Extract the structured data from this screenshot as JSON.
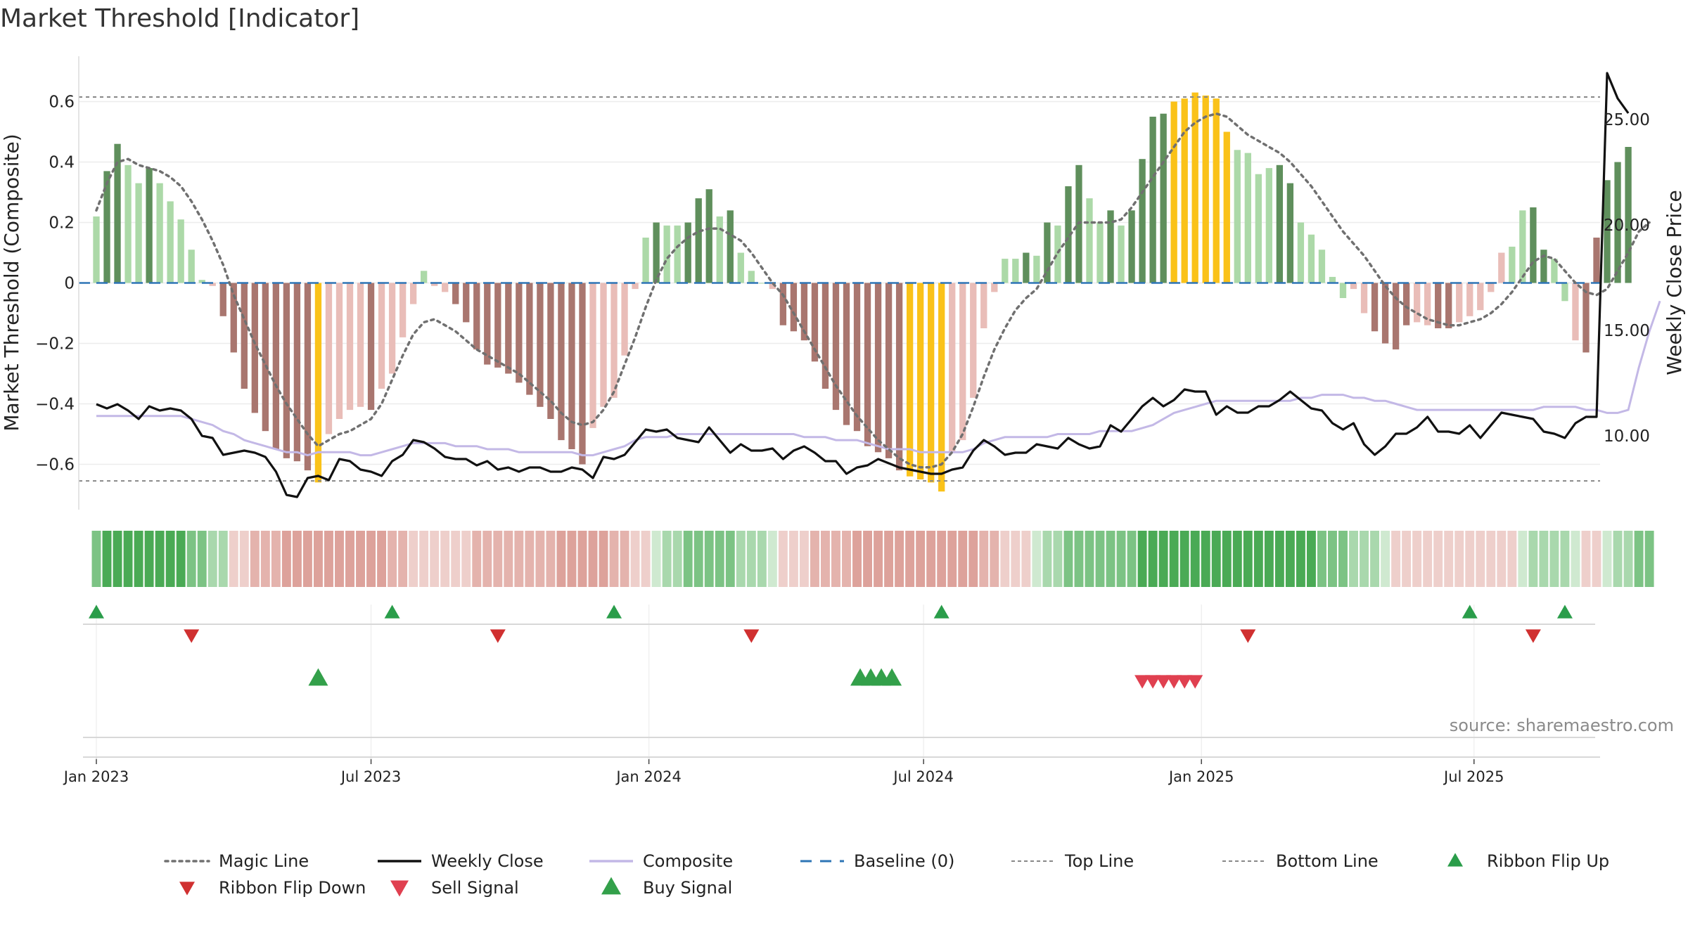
{
  "title": "Market Threshold [Indicator]",
  "source": "source: sharemaestro.com",
  "colors": {
    "bar_pos_strong": "#5f8f5c",
    "bar_pos_weak": "#acd9a8",
    "bar_neg_strong": "#a9766f",
    "bar_neg_weak": "#e9bdb8",
    "bar_extreme": "#fac219",
    "magic_line": "#707070",
    "weekly_close": "#111111",
    "composite": "#c3b8e6",
    "baseline": "#2e75b6",
    "threshold_lines": "#888888",
    "ribbon_flip_up": "#2a9d4a",
    "ribbon_flip_down": "#d03030",
    "sell_signal": "#e04050",
    "buy_signal": "#33a04a"
  },
  "chart_data": {
    "type": "bar",
    "title": "Market Threshold [Indicator]",
    "ylabel_left": "Market Threshold (Composite)",
    "ylabel_right": "Weekly Close Price",
    "ylim_left": [
      -0.75,
      0.75
    ],
    "ylim_right": [
      6.5,
      28.0
    ],
    "left_ticks": [
      0.6,
      0.4,
      0.2,
      0,
      -0.2,
      -0.4,
      -0.6
    ],
    "left_tick_labels": [
      "0.6",
      "0.4",
      "0.2",
      "0",
      "−0.2",
      "−0.4",
      "−0.6"
    ],
    "right_ticks": [
      25,
      20,
      15,
      10
    ],
    "right_tick_labels": [
      "25.00",
      "20.00",
      "15.00",
      "10.00"
    ],
    "top_line": 0.615,
    "bottom_line": -0.655,
    "x_start_week": -1,
    "x_end_week": 143,
    "date_ticks": [
      {
        "week": 0,
        "label": "Jan 2023"
      },
      {
        "week": 26,
        "label": "Jul 2023"
      },
      {
        "week": 52.3,
        "label": "Jan 2024"
      },
      {
        "week": 78.3,
        "label": "Jul 2024"
      },
      {
        "week": 104.6,
        "label": "Jan 2025"
      },
      {
        "week": 130.4,
        "label": "Jul 2025"
      }
    ],
    "bars": [
      0.22,
      0.37,
      0.46,
      0.39,
      0.33,
      0.38,
      0.33,
      0.27,
      0.21,
      0.11,
      0.01,
      -0.01,
      -0.11,
      -0.23,
      -0.35,
      -0.43,
      -0.49,
      -0.55,
      -0.58,
      -0.59,
      -0.62,
      -0.66,
      -0.5,
      -0.45,
      -0.42,
      -0.41,
      -0.42,
      -0.35,
      -0.3,
      -0.18,
      -0.07,
      0.04,
      -0.01,
      -0.03,
      -0.07,
      -0.13,
      -0.22,
      -0.27,
      -0.28,
      -0.3,
      -0.33,
      -0.37,
      -0.41,
      -0.45,
      -0.52,
      -0.55,
      -0.6,
      -0.48,
      -0.41,
      -0.38,
      -0.24,
      -0.02,
      0.15,
      0.2,
      0.19,
      0.19,
      0.2,
      0.28,
      0.31,
      0.22,
      0.24,
      0.1,
      0.04,
      0.0,
      -0.02,
      -0.14,
      -0.16,
      -0.19,
      -0.26,
      -0.35,
      -0.42,
      -0.47,
      -0.49,
      -0.54,
      -0.56,
      -0.58,
      -0.62,
      -0.64,
      -0.65,
      -0.66,
      -0.69,
      -0.56,
      -0.52,
      -0.38,
      -0.15,
      -0.03,
      0.08,
      0.08,
      0.1,
      0.09,
      0.2,
      0.19,
      0.32,
      0.39,
      0.28,
      0.2,
      0.24,
      0.19,
      0.24,
      0.41,
      0.55,
      0.56,
      0.6,
      0.61,
      0.63,
      0.62,
      0.61,
      0.5,
      0.44,
      0.43,
      0.36,
      0.38,
      0.39,
      0.33,
      0.2,
      0.16,
      0.11,
      0.02,
      -0.05,
      -0.02,
      -0.1,
      -0.16,
      -0.2,
      -0.22,
      -0.14,
      -0.13,
      -0.14,
      -0.15,
      -0.15,
      -0.13,
      -0.11,
      -0.09,
      -0.03,
      0.1,
      0.12,
      0.24,
      0.25,
      0.11,
      0.08,
      -0.06,
      -0.19,
      -0.23,
      0.15,
      0.34,
      0.4,
      0.45
    ],
    "bar_categories": [
      "wp",
      "sp",
      "sp",
      "wp",
      "wp",
      "sp",
      "wp",
      "wp",
      "wp",
      "wp",
      "wp",
      "wn",
      "sn",
      "sn",
      "sn",
      "sn",
      "sn",
      "sn",
      "sn",
      "sn",
      "sn",
      "ex",
      "wn",
      "wn",
      "wn",
      "wn",
      "sn",
      "wn",
      "wn",
      "wn",
      "wn",
      "wp",
      "wn",
      "wn",
      "sn",
      "sn",
      "sn",
      "sn",
      "sn",
      "sn",
      "sn",
      "sn",
      "sn",
      "sn",
      "sn",
      "sn",
      "sn",
      "wn",
      "wn",
      "wn",
      "wn",
      "wn",
      "wp",
      "sp",
      "wp",
      "wp",
      "sp",
      "sp",
      "sp",
      "wp",
      "sp",
      "wp",
      "wp",
      "wp",
      "wn",
      "sn",
      "sn",
      "sn",
      "sn",
      "sn",
      "sn",
      "sn",
      "sn",
      "sn",
      "sn",
      "sn",
      "sn",
      "ex",
      "ex",
      "ex",
      "ex",
      "wn",
      "wn",
      "wn",
      "wn",
      "wn",
      "wp",
      "wp",
      "sp",
      "wp",
      "sp",
      "wp",
      "sp",
      "sp",
      "wp",
      "wp",
      "sp",
      "wp",
      "sp",
      "sp",
      "sp",
      "sp",
      "ex",
      "ex",
      "ex",
      "ex",
      "ex",
      "ex",
      "wp",
      "wp",
      "wp",
      "wp",
      "sp",
      "sp",
      "wp",
      "wp",
      "wp",
      "wp",
      "wp",
      "wn",
      "wn",
      "sn",
      "sn",
      "sn",
      "sn",
      "wn",
      "wn",
      "sn",
      "sn",
      "wn",
      "wn",
      "wn",
      "wn",
      "wn",
      "wp",
      "wp",
      "sp",
      "sp",
      "wp",
      "wp",
      "wn",
      "sn",
      "sn",
      "sp",
      "sp",
      "sp",
      "sp"
    ],
    "magic_line": [
      0.24,
      0.33,
      0.4,
      0.41,
      0.39,
      0.38,
      0.37,
      0.35,
      0.32,
      0.27,
      0.21,
      0.14,
      0.06,
      -0.04,
      -0.12,
      -0.2,
      -0.27,
      -0.34,
      -0.4,
      -0.45,
      -0.5,
      -0.54,
      -0.52,
      -0.5,
      -0.49,
      -0.47,
      -0.45,
      -0.4,
      -0.32,
      -0.24,
      -0.17,
      -0.13,
      -0.12,
      -0.14,
      -0.16,
      -0.19,
      -0.22,
      -0.24,
      -0.26,
      -0.28,
      -0.3,
      -0.33,
      -0.36,
      -0.39,
      -0.43,
      -0.46,
      -0.47,
      -0.46,
      -0.42,
      -0.36,
      -0.27,
      -0.18,
      -0.08,
      0.01,
      0.08,
      0.12,
      0.15,
      0.17,
      0.18,
      0.18,
      0.16,
      0.14,
      0.1,
      0.05,
      0.0,
      -0.04,
      -0.1,
      -0.16,
      -0.22,
      -0.28,
      -0.34,
      -0.39,
      -0.44,
      -0.48,
      -0.52,
      -0.55,
      -0.58,
      -0.6,
      -0.61,
      -0.61,
      -0.6,
      -0.56,
      -0.5,
      -0.41,
      -0.31,
      -0.22,
      -0.15,
      -0.09,
      -0.05,
      -0.02,
      0.04,
      0.1,
      0.15,
      0.2,
      0.2,
      0.2,
      0.2,
      0.21,
      0.25,
      0.3,
      0.35,
      0.4,
      0.45,
      0.5,
      0.53,
      0.55,
      0.56,
      0.55,
      0.52,
      0.49,
      0.47,
      0.45,
      0.43,
      0.4,
      0.36,
      0.32,
      0.27,
      0.22,
      0.17,
      0.13,
      0.09,
      0.04,
      -0.01,
      -0.05,
      -0.08,
      -0.1,
      -0.12,
      -0.13,
      -0.14,
      -0.14,
      -0.13,
      -0.12,
      -0.1,
      -0.07,
      -0.03,
      0.02,
      0.07,
      0.09,
      0.08,
      0.04,
      0.0,
      -0.03,
      -0.04,
      -0.02,
      0.04,
      0.1,
      0.17,
      0.2
    ],
    "weekly_close": [
      11.5,
      11.3,
      11.5,
      11.2,
      10.8,
      11.4,
      11.2,
      11.3,
      11.2,
      10.8,
      10.0,
      9.9,
      9.1,
      9.2,
      9.3,
      9.2,
      9.0,
      8.3,
      7.2,
      7.1,
      8.0,
      8.1,
      7.9,
      8.9,
      8.8,
      8.4,
      8.3,
      8.1,
      8.8,
      9.1,
      9.8,
      9.7,
      9.4,
      9.0,
      8.9,
      8.9,
      8.6,
      8.8,
      8.4,
      8.5,
      8.3,
      8.5,
      8.5,
      8.3,
      8.3,
      8.5,
      8.4,
      8.0,
      9.0,
      8.9,
      9.1,
      9.7,
      10.3,
      10.2,
      10.3,
      9.9,
      9.8,
      9.7,
      10.4,
      9.8,
      9.2,
      9.6,
      9.3,
      9.3,
      9.4,
      8.9,
      9.3,
      9.5,
      9.2,
      8.8,
      8.8,
      8.2,
      8.5,
      8.6,
      8.9,
      8.7,
      8.5,
      8.4,
      8.3,
      8.2,
      8.2,
      8.4,
      8.5,
      9.3,
      9.8,
      9.5,
      9.1,
      9.2,
      9.2,
      9.6,
      9.5,
      9.4,
      9.9,
      9.6,
      9.4,
      9.5,
      10.5,
      10.2,
      10.8,
      11.4,
      11.8,
      11.4,
      11.7,
      12.2,
      12.1,
      12.1,
      11.0,
      11.4,
      11.1,
      11.1,
      11.4,
      11.4,
      11.7,
      12.1,
      11.7,
      11.3,
      11.2,
      10.6,
      10.3,
      10.6,
      9.6,
      9.1,
      9.5,
      10.1,
      10.1,
      10.4,
      10.9,
      10.2,
      10.2,
      10.1,
      10.5,
      9.9,
      10.5,
      11.1,
      11.0,
      10.9,
      10.8,
      10.2,
      10.1,
      9.9,
      10.6,
      10.9,
      10.9,
      27.2,
      26.0,
      25.3
    ],
    "composite": [
      -0.44,
      -0.44,
      -0.44,
      -0.44,
      -0.44,
      -0.44,
      -0.44,
      -0.44,
      -0.44,
      -0.45,
      -0.46,
      -0.47,
      -0.49,
      -0.5,
      -0.52,
      -0.53,
      -0.54,
      -0.55,
      -0.56,
      -0.56,
      -0.57,
      -0.56,
      -0.56,
      -0.56,
      -0.56,
      -0.57,
      -0.57,
      -0.56,
      -0.55,
      -0.54,
      -0.53,
      -0.53,
      -0.53,
      -0.53,
      -0.54,
      -0.54,
      -0.54,
      -0.55,
      -0.55,
      -0.55,
      -0.56,
      -0.56,
      -0.56,
      -0.56,
      -0.56,
      -0.56,
      -0.57,
      -0.57,
      -0.56,
      -0.55,
      -0.54,
      -0.52,
      -0.51,
      -0.51,
      -0.51,
      -0.5,
      -0.5,
      -0.5,
      -0.5,
      -0.5,
      -0.5,
      -0.5,
      -0.5,
      -0.5,
      -0.5,
      -0.5,
      -0.5,
      -0.51,
      -0.51,
      -0.51,
      -0.52,
      -0.52,
      -0.52,
      -0.53,
      -0.54,
      -0.55,
      -0.55,
      -0.55,
      -0.56,
      -0.56,
      -0.56,
      -0.56,
      -0.56,
      -0.55,
      -0.53,
      -0.52,
      -0.51,
      -0.51,
      -0.51,
      -0.51,
      -0.51,
      -0.5,
      -0.5,
      -0.5,
      -0.5,
      -0.49,
      -0.49,
      -0.49,
      -0.49,
      -0.48,
      -0.47,
      -0.45,
      -0.43,
      -0.42,
      -0.41,
      -0.4,
      -0.39,
      -0.39,
      -0.39,
      -0.39,
      -0.39,
      -0.39,
      -0.39,
      -0.39,
      -0.38,
      -0.38,
      -0.37,
      -0.37,
      -0.37,
      -0.38,
      -0.38,
      -0.39,
      -0.39,
      -0.4,
      -0.41,
      -0.42,
      -0.42,
      -0.42,
      -0.42,
      -0.42,
      -0.42,
      -0.42,
      -0.42,
      -0.42,
      -0.42,
      -0.42,
      -0.42,
      -0.41,
      -0.41,
      -0.41,
      -0.41,
      -0.42,
      -0.42,
      -0.43,
      -0.43,
      -0.42,
      -0.28,
      -0.16,
      -0.06
    ],
    "ribbon_flip_up_weeks": [
      0,
      28,
      49,
      80,
      130,
      139
    ],
    "ribbon_flip_down_weeks": [
      9,
      38,
      62,
      109,
      136
    ],
    "buy_signal_weeks": [
      21,
      72.3,
      73.3,
      74.3,
      75.3
    ],
    "sell_signal_weeks": [
      99,
      100,
      101,
      102,
      103,
      104
    ],
    "legend": [
      "Magic Line",
      "Weekly Close",
      "Composite",
      "Baseline (0)",
      "Top Line",
      "Bottom Line",
      "Ribbon Flip Up",
      "Ribbon Flip Down",
      "Sell Signal",
      "Buy Signal"
    ]
  }
}
